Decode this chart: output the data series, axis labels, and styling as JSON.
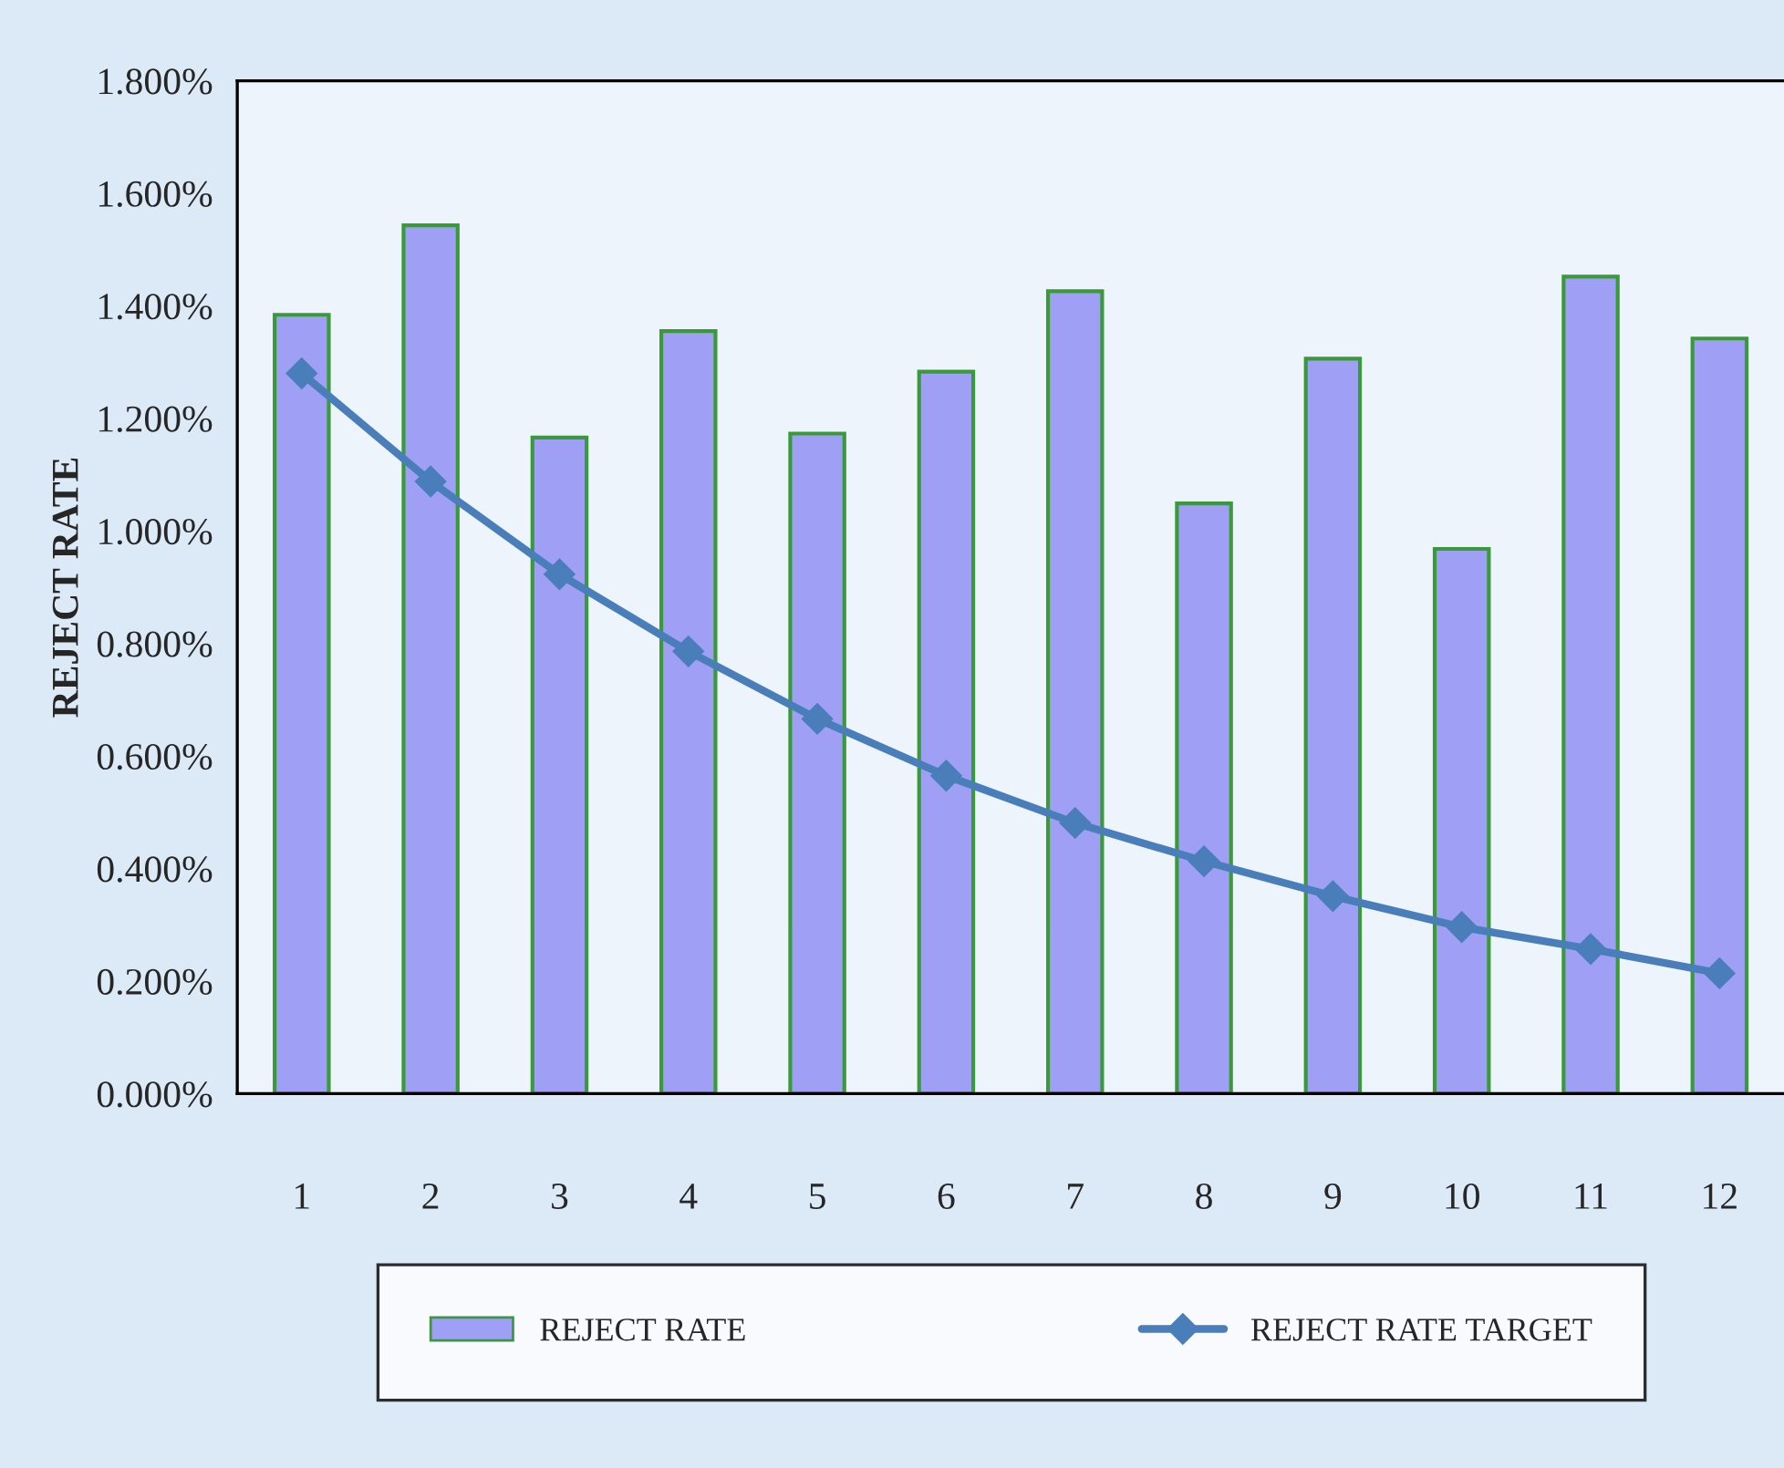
{
  "chart_data": {
    "type": "bar",
    "ylabel": "REJECT RATE",
    "categories": [
      "1",
      "2",
      "3",
      "4",
      "5",
      "6",
      "7",
      "8",
      "9",
      "10",
      "11",
      "12"
    ],
    "series": [
      {
        "name": "REJECT RATE",
        "color": "#9f9ff5",
        "values": [
          1.384,
          1.543,
          1.166,
          1.355,
          1.173,
          1.283,
          1.426,
          1.049,
          1.306,
          0.968,
          1.452,
          1.342
        ]
      },
      {
        "name": "REJECT RATE TARGET",
        "type": "line",
        "color": "#4a7ebb",
        "marker": "diamond",
        "values": [
          1.28,
          1.088,
          0.923,
          0.786,
          0.666,
          0.565,
          0.481,
          0.413,
          0.351,
          0.296,
          0.257,
          0.214
        ]
      }
    ],
    "ylim": [
      0,
      1.8
    ],
    "yticks": [
      {
        "value": 0,
        "label": "0.000%"
      },
      {
        "value": 0.2,
        "label": "0.200%"
      },
      {
        "value": 0.4,
        "label": "0.400%"
      },
      {
        "value": 0.6,
        "label": "0.600%"
      },
      {
        "value": 0.8,
        "label": "0.800%"
      },
      {
        "value": 1.0,
        "label": "1.000%"
      },
      {
        "value": 1.2,
        "label": "1.200%"
      },
      {
        "value": 1.4,
        "label": "1.400%"
      },
      {
        "value": 1.6,
        "label": "1.600%"
      },
      {
        "value": 1.8,
        "label": "1.800%"
      }
    ],
    "grid": false,
    "legend": "bottom"
  }
}
